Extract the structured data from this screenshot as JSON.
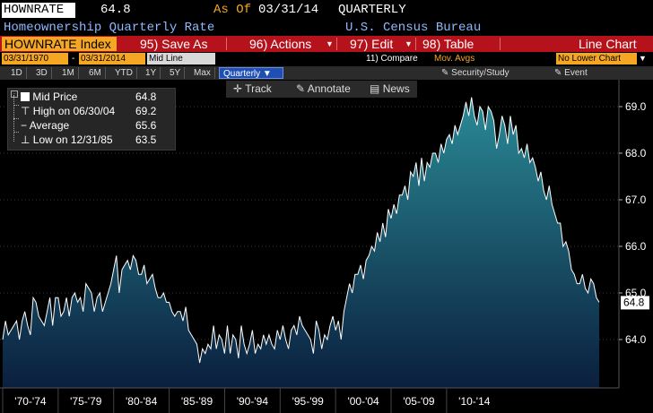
{
  "header": {
    "ticker": "HOWNRATE",
    "last": "64.8",
    "as_of_label": "As Of",
    "as_of_date": "03/31/14",
    "frequency": "QUARTERLY",
    "description": "Homeownership Quarterly Rate",
    "source": "U.S. Census Bureau"
  },
  "toolbar": {
    "security": "HOWNRATE Index",
    "save_num": "95)",
    "save": "Save As",
    "actions_num": "96)",
    "actions": "Actions",
    "edit_num": "97)",
    "edit": "Edit",
    "table_num": "98)",
    "table": "Table",
    "chart_type": "Line Chart"
  },
  "dates": {
    "start": "03/31/1970",
    "dash": "-",
    "end": "03/31/2014",
    "mid": "Mid Line",
    "compare_num": "11)",
    "compare": "Compare",
    "mov_avgs": "Mov. Avgs",
    "lower": "No Lower Chart"
  },
  "periods": {
    "items": [
      "1D",
      "3D",
      "1M",
      "6M",
      "YTD",
      "1Y",
      "5Y",
      "Max"
    ],
    "selected": "Quarterly",
    "security_study": "Security/Study",
    "event": "Event"
  },
  "overlay": {
    "track": "Track",
    "annotate": "Annotate",
    "news": "News"
  },
  "legend": {
    "mid_label": "Mid Price",
    "mid_value": "64.8",
    "high_label": "High on 06/30/04",
    "high_value": "69.2",
    "avg_label": "Average",
    "avg_value": "65.6",
    "low_label": "Low on 12/31/85",
    "low_value": "63.5"
  },
  "colors": {
    "accent": "#f5a623",
    "toolbar": "#b5121b",
    "fill_top": "#2a8a96",
    "fill_bottom": "#0a1f3e"
  },
  "chart_data": {
    "type": "area",
    "x_start_year": 1970,
    "quarters_per_year": 4,
    "ylim": [
      62.9,
      69.5
    ],
    "yticks": [
      64.0,
      65.0,
      66.0,
      67.0,
      68.0,
      69.0
    ],
    "ytick_labels": [
      "64.0",
      "65.0",
      "66.0",
      "67.0",
      "68.0",
      "69.0"
    ],
    "xtick_labels": [
      "'70-'74",
      "'75-'79",
      "'80-'84",
      "'85-'89",
      "'90-'94",
      "'95-'99",
      "'00-'04",
      "'05-'09",
      "'10-'14"
    ],
    "last_value_label": "64.8",
    "values": [
      64.0,
      64.4,
      64.1,
      64.2,
      64.3,
      64.4,
      64.0,
      64.4,
      64.6,
      64.3,
      64.1,
      64.9,
      64.8,
      64.5,
      64.4,
      64.3,
      64.6,
      64.9,
      64.3,
      64.9,
      64.9,
      64.5,
      64.6,
      64.9,
      64.5,
      64.9,
      65.0,
      64.8,
      64.9,
      64.6,
      65.2,
      65.1,
      65.0,
      64.6,
      64.9,
      65.0,
      64.6,
      64.8,
      65.0,
      65.2,
      65.5,
      65.8,
      65.0,
      65.5,
      65.6,
      65.7,
      65.5,
      65.8,
      65.7,
      65.4,
      65.4,
      65.6,
      65.2,
      65.3,
      65.4,
      65.1,
      64.9,
      64.9,
      65.0,
      64.8,
      64.8,
      64.6,
      64.5,
      64.6,
      64.6,
      64.4,
      64.7,
      64.2,
      64.1,
      64.0,
      63.9,
      63.5,
      63.8,
      63.7,
      63.9,
      63.8,
      64.3,
      63.8,
      64.1,
      64.0,
      63.7,
      64.3,
      63.7,
      64.1,
      64.0,
      63.6,
      64.3,
      63.9,
      63.7,
      63.9,
      64.2,
      63.7,
      63.9,
      63.8,
      64.1,
      63.9,
      64.1,
      63.9,
      63.8,
      64.2,
      64.0,
      64.3,
      64.0,
      63.8,
      64.2,
      64.3,
      64.1,
      64.5,
      64.3,
      64.2,
      64.1,
      64.0,
      63.7,
      64.4,
      64.2,
      63.8,
      64.1,
      64.0,
      64.3,
      64.5,
      64.2,
      64.4,
      64.0,
      64.6,
      64.9,
      65.2,
      65.0,
      65.4,
      65.4,
      65.6,
      65.3,
      65.7,
      65.8,
      66.0,
      65.9,
      66.3,
      66.1,
      66.5,
      66.2,
      66.8,
      66.6,
      66.9,
      66.7,
      67.1,
      67.1,
      67.3,
      67.0,
      67.6,
      67.5,
      67.8,
      67.3,
      67.9,
      67.4,
      67.8,
      67.7,
      68.0,
      68.0,
      67.8,
      68.2,
      68.0,
      68.3,
      68.4,
      68.2,
      68.6,
      68.4,
      68.6,
      68.8,
      69.1,
      68.8,
      69.2,
      68.8,
      68.6,
      69.0,
      68.9,
      68.5,
      69.0,
      68.9,
      68.7,
      68.1,
      68.4,
      68.8,
      68.6,
      68.2,
      68.8,
      68.4,
      68.6,
      68.0,
      68.1,
      67.9,
      68.2,
      67.8,
      67.9,
      67.7,
      67.4,
      67.6,
      67.2,
      67.0,
      67.3,
      66.9,
      66.7,
      66.5,
      66.5,
      66.0,
      66.1,
      65.9,
      65.5,
      65.4,
      65.2,
      65.2,
      65.4,
      65.1,
      65.0,
      65.3,
      65.2,
      64.9,
      64.8
    ]
  }
}
